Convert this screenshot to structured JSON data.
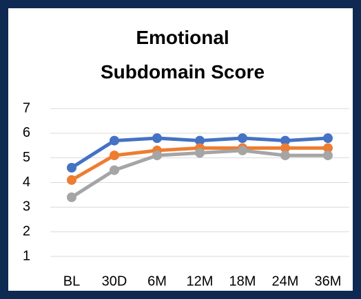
{
  "chart_data": {
    "type": "line",
    "title": "Emotional Subdomain Score",
    "categories": [
      "BL",
      "30D",
      "6M",
      "12M",
      "18M",
      "24M",
      "36M"
    ],
    "series": [
      {
        "color": "#4472c4",
        "values": [
          4.6,
          5.7,
          5.8,
          5.7,
          5.8,
          5.7,
          5.8
        ]
      },
      {
        "color": "#ed7d31",
        "values": [
          4.1,
          5.1,
          5.3,
          5.4,
          5.4,
          5.4,
          5.4
        ]
      },
      {
        "color": "#a5a5a5",
        "values": [
          3.4,
          4.5,
          5.1,
          5.2,
          5.3,
          5.1,
          5.1
        ]
      }
    ],
    "ylim": [
      1,
      7
    ],
    "yticks": [
      1,
      2,
      3,
      4,
      5,
      6,
      7
    ],
    "grid": true
  }
}
